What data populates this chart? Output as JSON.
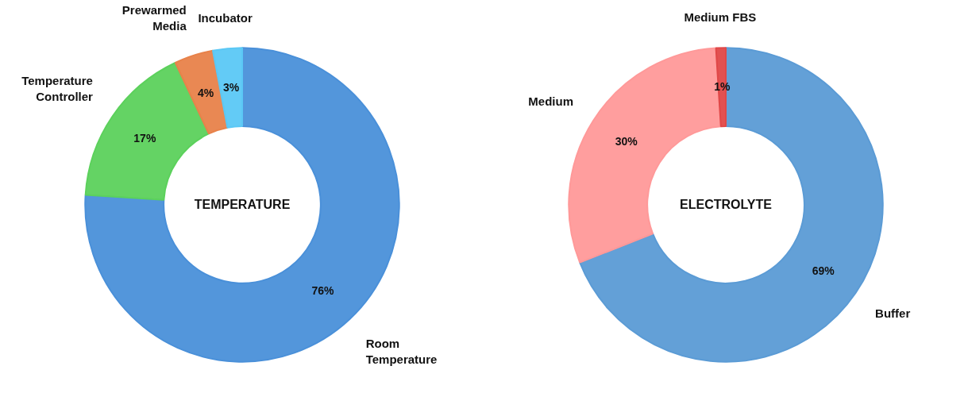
{
  "chart_data": [
    {
      "type": "donut",
      "title": "TEMPERATURE",
      "categories": [
        "Room Temperature",
        "Temperature Controller",
        "Prewarmed Media",
        "Incubator"
      ],
      "values": [
        76,
        17,
        4,
        3
      ],
      "colors": [
        "#4a90d9",
        "#5cd15c",
        "#e8824a",
        "#5bc8f5"
      ],
      "value_labels": [
        "76%",
        "17%",
        "4%",
        "3%"
      ]
    },
    {
      "type": "donut",
      "title": "ELECTROLYTE",
      "categories": [
        "Buffer",
        "Medium",
        "Medium FBS"
      ],
      "values": [
        69,
        30,
        1
      ],
      "colors": [
        "#5b9bd5",
        "#ff9999",
        "#e04848"
      ],
      "value_labels": [
        "69%",
        "30%",
        "1%"
      ]
    }
  ]
}
